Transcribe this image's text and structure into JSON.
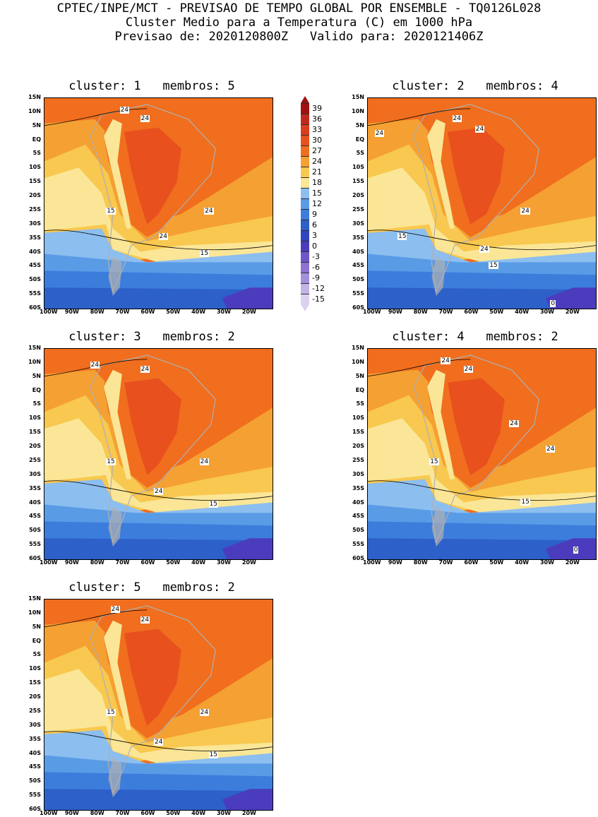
{
  "header": {
    "line1": "CPTEC/INPE/MCT - PREVISAO DE TEMPO GLOBAL POR ENSEMBLE - TQ0126L028",
    "line2": "Cluster Medio para a Temperatura (C) em 1000 hPa",
    "line3": "Previsao de: 2020120800Z   Valido para: 2020121406Z"
  },
  "lat_labels": [
    "15N",
    "10N",
    "5N",
    "EQ",
    "5S",
    "10S",
    "15S",
    "20S",
    "25S",
    "30S",
    "35S",
    "40S",
    "45S",
    "50S",
    "55S",
    "60S"
  ],
  "lon_labels": [
    "100W",
    "90W",
    "80W",
    "70W",
    "60W",
    "50W",
    "40W",
    "30W",
    "20W"
  ],
  "panels": [
    {
      "title": "cluster: 1   membros: 5",
      "labels": [
        "24",
        "24",
        "15",
        "24",
        "24",
        "15"
      ]
    },
    {
      "title": "cluster: 2   membros: 4",
      "labels": [
        "24",
        "24",
        "24",
        "15",
        "24",
        "24",
        "15",
        "0"
      ]
    },
    {
      "title": "cluster: 3   membros: 2",
      "labels": [
        "24",
        "24",
        "15",
        "24",
        "24",
        "15"
      ]
    },
    {
      "title": "cluster: 4   membros: 2",
      "labels": [
        "24",
        "24",
        "15",
        "24",
        "24",
        "15",
        "0"
      ]
    },
    {
      "title": "cluster: 5   membros: 2",
      "labels": [
        "24",
        "24",
        "15",
        "24",
        "24",
        "15"
      ]
    }
  ],
  "colorbar": {
    "labels": [
      "39",
      "36",
      "33",
      "30",
      "27",
      "24",
      "21",
      "18",
      "15",
      "12",
      "9",
      "6",
      "3",
      "0",
      "-3",
      "-6",
      "-9",
      "-12",
      "-15"
    ],
    "colors": [
      "#a01010",
      "#c0281e",
      "#dc3c1e",
      "#e8501e",
      "#f06e1e",
      "#f5a032",
      "#f8c850",
      "#fae696",
      "#8cbef0",
      "#5a9be6",
      "#3c7ddc",
      "#2d60c8",
      "#3046be",
      "#4b3cbe",
      "#6e55c8",
      "#8c73d2",
      "#a58fdc",
      "#c3b4e6",
      "#dcd2f0"
    ]
  },
  "colors": {
    "hot": "#e8501e",
    "warm": "#f06e1e",
    "orange": "#f5a032",
    "yellow": "#f8c850",
    "paleyellow": "#fae696",
    "lightblue": "#8cbef0",
    "blue": "#5a9be6",
    "midblue": "#3c7ddc",
    "darkblue": "#2d60c8",
    "purple": "#4b3cbe",
    "land": "#b0b0b0"
  }
}
